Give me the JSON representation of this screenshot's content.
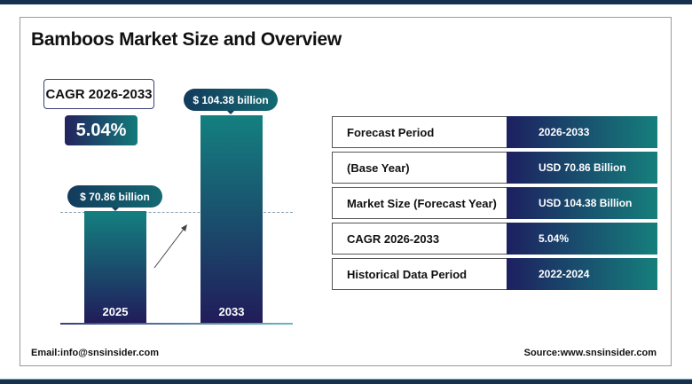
{
  "title": "Bamboos Market Size and Overview",
  "cagr": {
    "label": "CAGR 2026-2033",
    "value": "5.04%"
  },
  "bars": [
    {
      "year": "2025",
      "label": "$ 70.86 billion",
      "value": 70.86
    },
    {
      "year": "2033",
      "label": "$ 104.38 billion",
      "value": 104.38
    }
  ],
  "table": [
    {
      "label": "Forecast Period",
      "value": "2026-2033"
    },
    {
      "label": "(Base Year)",
      "value": "USD  70.86 Billion"
    },
    {
      "label": "Market Size (Forecast Year)",
      "value": "USD 104.38 Billion"
    },
    {
      "label": "CAGR 2026-2033",
      "value": "5.04%"
    },
    {
      "label": "Historical Data Period",
      "value": "2022-2024"
    }
  ],
  "footer": {
    "email": "Email:info@snsinsider.com",
    "source": "Source:www.snsinsider.com"
  },
  "colors": {
    "navy": "#16304f",
    "teal": "#148080",
    "indigo": "#211c5a"
  }
}
